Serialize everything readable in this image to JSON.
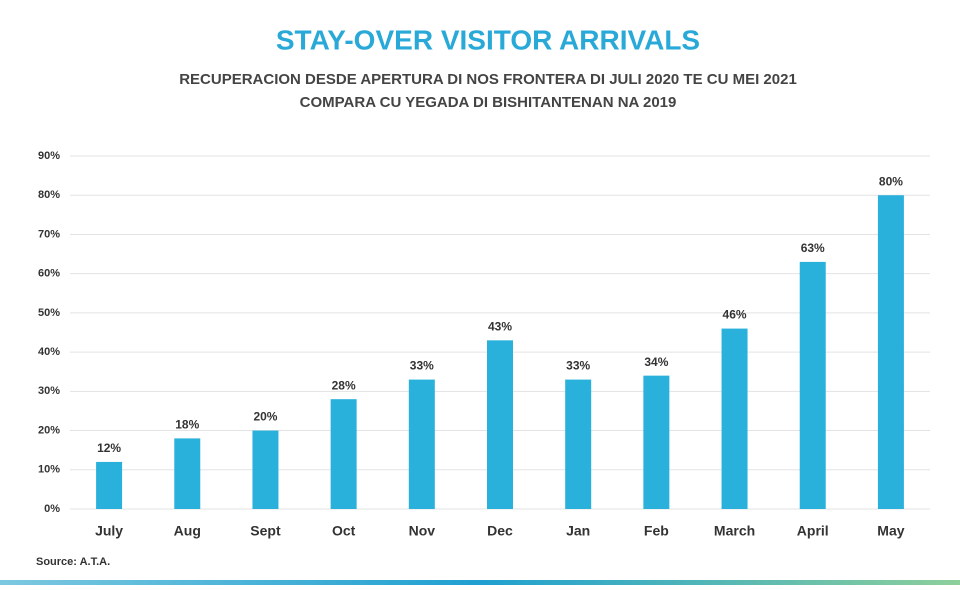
{
  "chart_data": {
    "type": "bar",
    "title": "STAY-OVER VISITOR ARRIVALS",
    "subtitle": [
      "RECUPERACION DESDE APERTURA DI NOS FRONTERA DI JULI 2020 TE CU MEI 2021",
      "COMPARA CU YEGADA DI BISHITANTENAN NA 2019"
    ],
    "categories": [
      "July",
      "Aug",
      "Sept",
      "Oct",
      "Nov",
      "Dec",
      "Jan",
      "Feb",
      "March",
      "April",
      "May"
    ],
    "values": [
      12,
      18,
      20,
      28,
      33,
      43,
      33,
      34,
      46,
      63,
      80
    ],
    "value_labels": [
      "12%",
      "18%",
      "20%",
      "28%",
      "33%",
      "43%",
      "33%",
      "34%",
      "46%",
      "63%",
      "80%"
    ],
    "color": "#29b1dc",
    "ylim": [
      0,
      90
    ],
    "yticks": [
      {
        "value": 0,
        "label": "0%"
      },
      {
        "value": 10,
        "label": "10%"
      },
      {
        "value": 20,
        "label": "20%"
      },
      {
        "value": 30,
        "label": "30%"
      },
      {
        "value": 40,
        "label": "40%"
      },
      {
        "value": 50,
        "label": "50%"
      },
      {
        "value": 60,
        "label": "60%"
      },
      {
        "value": 70,
        "label": "70%"
      },
      {
        "value": 80,
        "label": "80%"
      },
      {
        "value": 90,
        "label": "90%"
      }
    ],
    "grid": true,
    "source": "Source: A.T.A."
  }
}
